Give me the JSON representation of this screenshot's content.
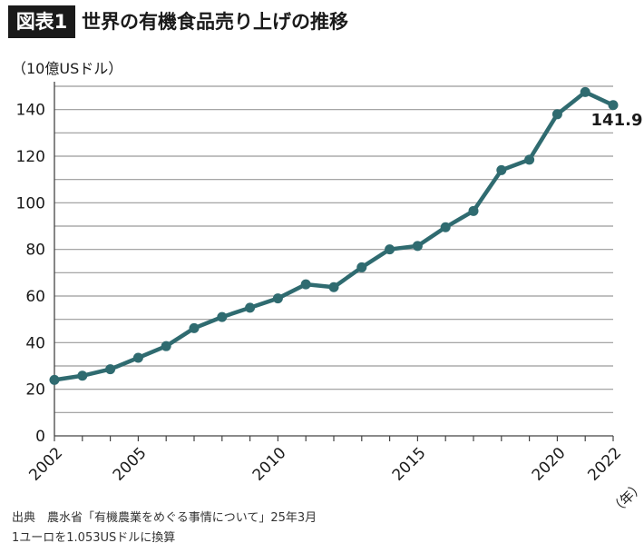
{
  "header": {
    "badge": "図表1",
    "title": "世界の有機食品売り上げの推移"
  },
  "chart_data": {
    "type": "line",
    "ylabel": "（10億USドル）",
    "xlabel": "（年）",
    "ylim": [
      0,
      150
    ],
    "yticks": [
      0,
      20,
      40,
      60,
      80,
      100,
      120,
      140
    ],
    "xticks": [
      2002,
      2005,
      2010,
      2015,
      2020,
      2022
    ],
    "xlim": [
      2002,
      2022
    ],
    "grid": true,
    "series": [
      {
        "x": [
          2002,
          2003,
          2004,
          2005,
          2006,
          2007,
          2008,
          2009,
          2010,
          2011,
          2012,
          2013,
          2014,
          2015,
          2016,
          2017,
          2018,
          2019,
          2020,
          2021,
          2022
        ],
        "values": [
          24,
          25.8,
          28.6,
          33.5,
          38.5,
          46.2,
          51,
          55,
          59,
          65,
          63.8,
          72.3,
          80,
          81.5,
          89.5,
          96.5,
          114,
          118.5,
          138,
          147.5,
          141.9
        ],
        "color": "#2f6b70"
      }
    ],
    "annotations": [
      {
        "x": 2022,
        "y": 141.9,
        "text": "141.9"
      }
    ]
  },
  "source": {
    "line1": "出典　農水省「有機農業をめぐる事情について」25年3月",
    "line2": "1ユーロを1.053USドルに換算"
  }
}
